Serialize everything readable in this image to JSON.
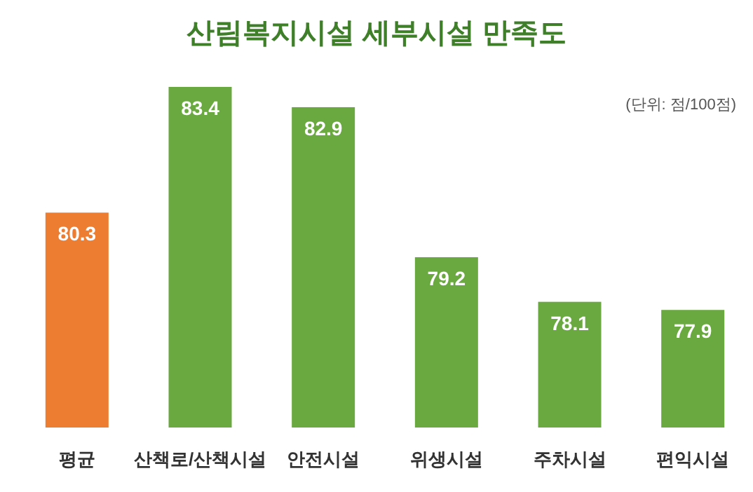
{
  "chart_data": {
    "type": "bar",
    "title": "산림복지시설 세부시설 만족도",
    "annotations": [
      "(단위: 점/100점)"
    ],
    "categories": [
      "평균",
      "산책로/산책시설",
      "안전시설",
      "위생시설",
      "주차시설",
      "편익시설"
    ],
    "values": [
      80.3,
      83.4,
      82.9,
      79.2,
      78.1,
      77.9
    ],
    "colors": [
      "#ed7d31",
      "#6aa840",
      "#6aa840",
      "#6aa840",
      "#6aa840",
      "#6aa840"
    ],
    "ylim": [
      75,
      83.4
    ],
    "data_labels": true
  }
}
